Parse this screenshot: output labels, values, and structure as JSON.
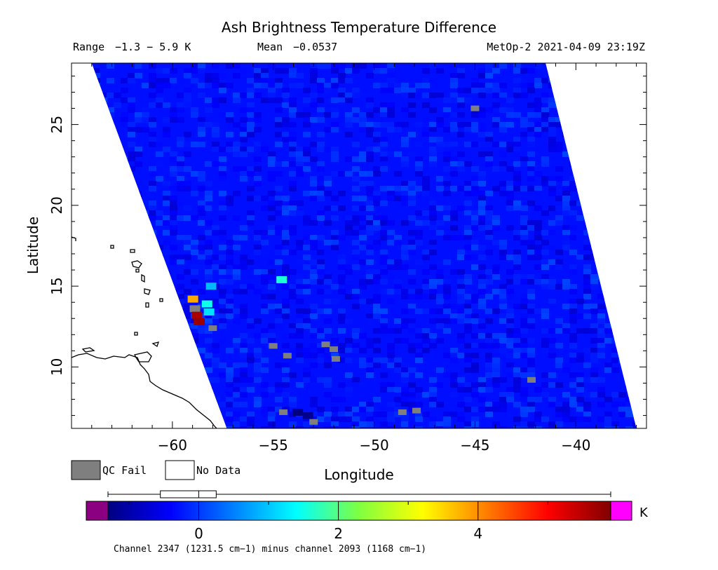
{
  "chart_data": {
    "type": "heatmap",
    "title": "Ash Brightness Temperature Difference",
    "stats": {
      "range_label": "Range",
      "range_value": "−1.3 − 5.9 K",
      "mean_label": "Mean",
      "mean_value": "−0.0537",
      "satellite_time": "MetOp-2 2021-04-09 23:19Z"
    },
    "xlabel": "Longitude",
    "ylabel": "Latitude",
    "xlim": [
      -65,
      -36.5
    ],
    "ylim": [
      6.2,
      28.8
    ],
    "x_ticks": [
      -60,
      -55,
      -50,
      -45,
      -40
    ],
    "x_tick_labels": [
      "−60",
      "−55",
      "−50",
      "−45",
      "−40"
    ],
    "y_ticks": [
      10,
      15,
      20,
      25
    ],
    "y_tick_labels": [
      "10",
      "15",
      "20",
      "25"
    ],
    "grid": false,
    "swath": {
      "corners": [
        {
          "lon": -64.0,
          "lat": 28.8
        },
        {
          "lon": -41.5,
          "lat": 28.8
        },
        {
          "lon": -37.0,
          "lat": 6.2
        },
        {
          "lon": -57.3,
          "lat": 6.2
        }
      ],
      "typical_value_K": -0.3,
      "notable_cells": [
        {
          "lon": -59.0,
          "lat": 14.2,
          "value_K": 3.8
        },
        {
          "lon": -58.9,
          "lat": 13.6,
          "value_K": "QC Fail"
        },
        {
          "lon": -58.8,
          "lat": 13.2,
          "value_K": 5.6
        },
        {
          "lon": -58.7,
          "lat": 12.8,
          "value_K": 5.7
        },
        {
          "lon": -58.3,
          "lat": 13.9,
          "value_K": 1.5
        },
        {
          "lon": -58.2,
          "lat": 13.4,
          "value_K": 1.2
        },
        {
          "lon": -54.6,
          "lat": 15.4,
          "value_K": 1.6
        },
        {
          "lon": -58.1,
          "lat": 15.0,
          "value_K": 0.9
        },
        {
          "lon": -53.8,
          "lat": 7.2,
          "value_K": -1.3
        },
        {
          "lon": -53.3,
          "lat": 7.0,
          "value_K": -1.2
        }
      ],
      "qc_fail_cells": [
        {
          "lon": -58.0,
          "lat": 12.4
        },
        {
          "lon": -55.0,
          "lat": 11.3
        },
        {
          "lon": -54.3,
          "lat": 10.7
        },
        {
          "lon": -52.4,
          "lat": 11.4
        },
        {
          "lon": -52.0,
          "lat": 11.1
        },
        {
          "lon": -51.9,
          "lat": 10.5
        },
        {
          "lon": -54.5,
          "lat": 7.2
        },
        {
          "lon": -53.0,
          "lat": 6.6
        },
        {
          "lon": -48.6,
          "lat": 7.2
        },
        {
          "lon": -47.9,
          "lat": 7.3
        },
        {
          "lon": -45.0,
          "lat": 26.0
        },
        {
          "lon": -42.2,
          "lat": 9.2
        }
      ]
    },
    "legend": {
      "qc_fail_label": "QC Fail",
      "no_data_label": "No Data",
      "qc_fail_color": "#7f7f7f",
      "no_data_color": "#ffffff"
    },
    "colorbar": {
      "vmin": -1.3,
      "vmax": 5.9,
      "ticks": [
        0,
        2,
        4
      ],
      "tick_labels": [
        "0",
        "2",
        "4"
      ],
      "unit": "K",
      "under_color": "#8b0080",
      "over_color": "#ff00ff",
      "stops": [
        "#000080",
        "#0000ff",
        "#0080ff",
        "#00ffff",
        "#80ff40",
        "#ffff00",
        "#ff8000",
        "#ff0000",
        "#800000"
      ],
      "box_plot": {
        "min": -1.3,
        "q1": -0.55,
        "median": 0.0,
        "q3": 0.25,
        "max": 5.9
      }
    },
    "caption": "Channel 2347 (1231.5 cm−1) minus channel 2093 (1168 cm−1)"
  }
}
